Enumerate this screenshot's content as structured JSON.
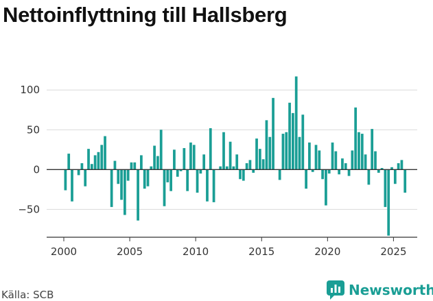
{
  "title": "Nettoinflyttning till Hallsberg",
  "source": "Källa: SCB",
  "brand": {
    "name": "Newsworthy",
    "icon": "bar-chart-bubble-icon",
    "color": "#1a9e95"
  },
  "chart_data": {
    "type": "bar",
    "title": "Nettoinflyttning till Hallsberg",
    "xlabel": "",
    "ylabel": "",
    "bar_color": "#1a9e95",
    "ylim": [
      -85,
      120
    ],
    "xlim": [
      1998.7,
      2026.8
    ],
    "y_ticks": [
      100,
      50,
      0,
      -50
    ],
    "y_tick_labels": [
      "100",
      "50",
      "0",
      "−50"
    ],
    "x_ticks": [
      2000,
      2005,
      2010,
      2015,
      2020,
      2025
    ],
    "x_tick_labels": [
      "2000",
      "2005",
      "2010",
      "2015",
      "2020",
      "2025"
    ],
    "grid": "horizontal",
    "frequency": "quarterly",
    "x": [
      "2000 K1",
      "2000 K2",
      "2000 K3",
      "2000 K4",
      "2001 K1",
      "2001 K2",
      "2001 K3",
      "2001 K4",
      "2002 K1",
      "2002 K2",
      "2002 K3",
      "2002 K4",
      "2003 K1",
      "2003 K2",
      "2003 K3",
      "2003 K4",
      "2004 K1",
      "2004 K2",
      "2004 K3",
      "2004 K4",
      "2005 K1",
      "2005 K2",
      "2005 K3",
      "2005 K4",
      "2006 K1",
      "2006 K2",
      "2006 K3",
      "2006 K4",
      "2007 K1",
      "2007 K2",
      "2007 K3",
      "2007 K4",
      "2008 K1",
      "2008 K2",
      "2008 K3",
      "2008 K4",
      "2009 K1",
      "2009 K2",
      "2009 K3",
      "2009 K4",
      "2010 K1",
      "2010 K2",
      "2010 K3",
      "2010 K4",
      "2011 K1",
      "2011 K2",
      "2011 K3",
      "2011 K4",
      "2012 K1",
      "2012 K2",
      "2012 K3",
      "2012 K4",
      "2013 K1",
      "2013 K2",
      "2013 K3",
      "2013 K4",
      "2014 K1",
      "2014 K2",
      "2014 K3",
      "2014 K4",
      "2015 K1",
      "2015 K2",
      "2015 K3",
      "2015 K4",
      "2016 K1",
      "2016 K2",
      "2016 K3",
      "2016 K4",
      "2017 K1",
      "2017 K2",
      "2017 K3",
      "2017 K4",
      "2018 K1",
      "2018 K2",
      "2018 K3",
      "2018 K4",
      "2019 K1",
      "2019 K2",
      "2019 K3",
      "2019 K4",
      "2020 K1",
      "2020 K2",
      "2020 K3",
      "2020 K4",
      "2021 K1",
      "2021 K2",
      "2021 K3",
      "2021 K4",
      "2022 K1",
      "2022 K2",
      "2022 K3",
      "2022 K4",
      "2023 K1",
      "2023 K2",
      "2023 K3",
      "2023 K4",
      "2024 K1",
      "2024 K2",
      "2024 K3",
      "2024 K4",
      "2025 K1",
      "2025 K2",
      "2025 K3",
      "2025 K4"
    ],
    "values": [
      -26,
      20,
      -40,
      0,
      -7,
      8,
      -21,
      26,
      7,
      18,
      22,
      31,
      42,
      0,
      -47,
      11,
      -18,
      -38,
      -57,
      -14,
      9,
      9,
      -64,
      18,
      -24,
      -21,
      4,
      30,
      17,
      50,
      -46,
      -16,
      -27,
      25,
      -9,
      -2,
      27,
      -27,
      34,
      31,
      -29,
      -5,
      19,
      -40,
      52,
      -41,
      0,
      4,
      47,
      4,
      35,
      4,
      19,
      -12,
      -14,
      8,
      12,
      -4,
      39,
      26,
      13,
      62,
      41,
      90,
      0,
      -13,
      45,
      47,
      84,
      71,
      117,
      41,
      69,
      -24,
      34,
      -3,
      31,
      24,
      -12,
      -45,
      -5,
      34,
      23,
      -6,
      14,
      8,
      -8,
      24,
      78,
      47,
      45,
      19,
      -19,
      51,
      23,
      -4,
      2,
      -47,
      -83,
      3,
      -18,
      8,
      12,
      -29
    ]
  }
}
